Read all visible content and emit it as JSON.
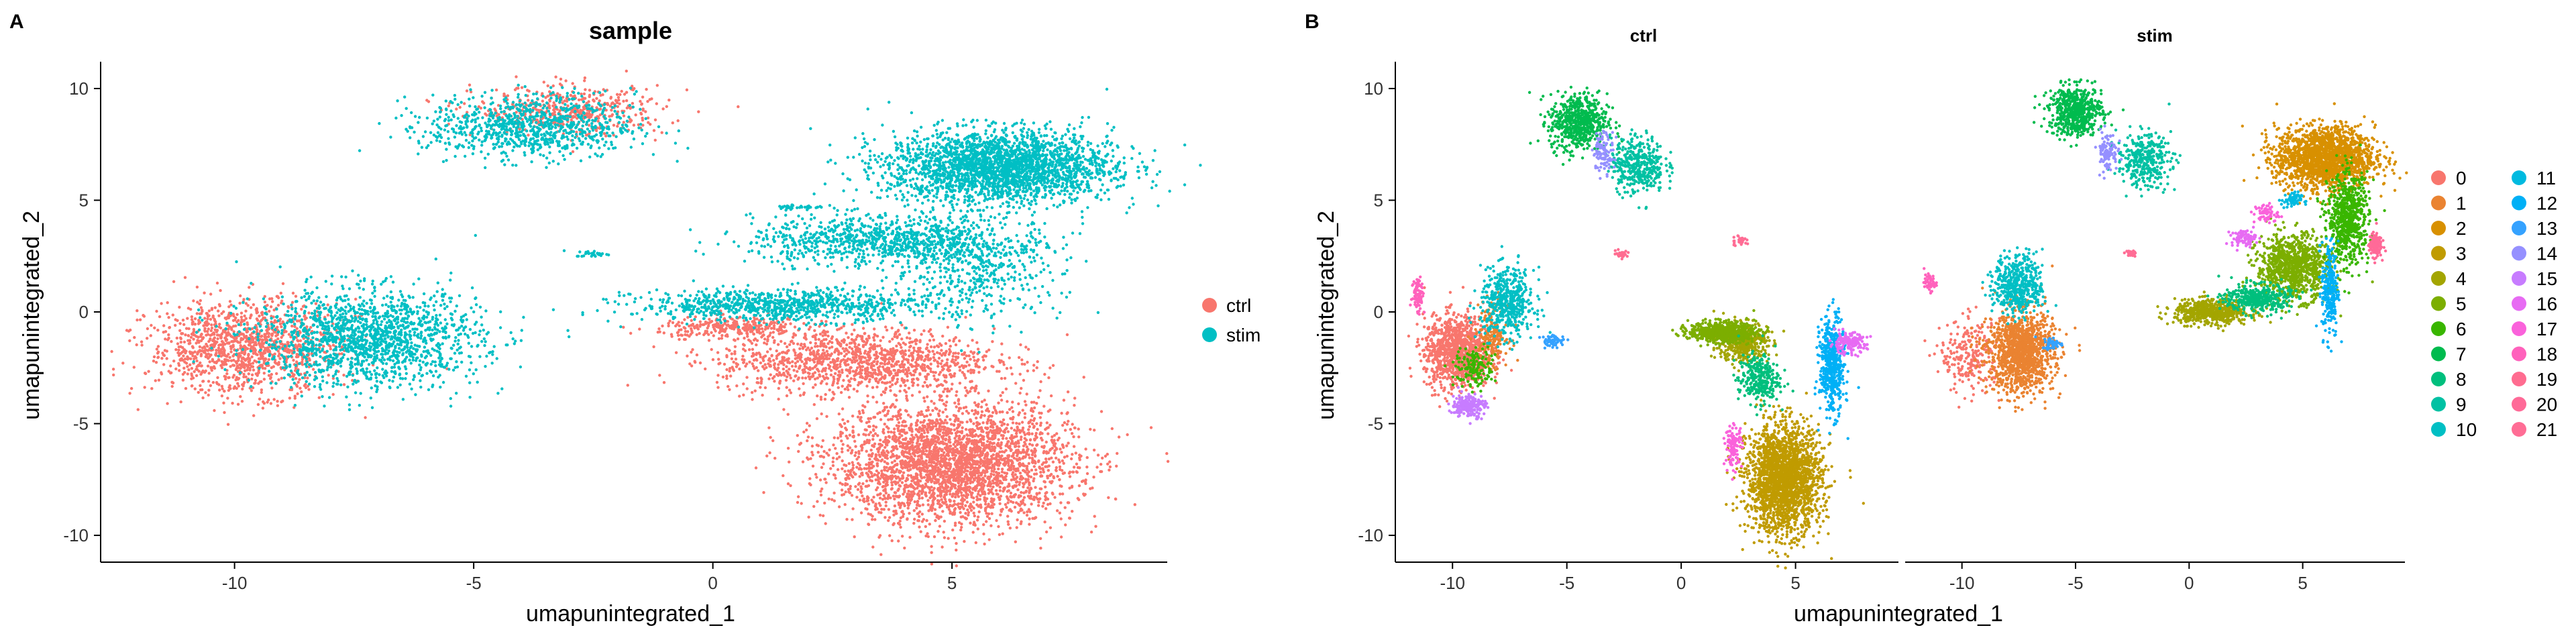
{
  "colors": {
    "ctrl": "#F8766D",
    "stim": "#00BFC4",
    "clusters": [
      "#F8766D",
      "#EA8331",
      "#D89000",
      "#C09B00",
      "#A3A500",
      "#7CAE00",
      "#39B600",
      "#00BB4E",
      "#00BF7D",
      "#00C1A3",
      "#00BFC4",
      "#00BAE0",
      "#00B0F6",
      "#35A2FF",
      "#9590FF",
      "#C77CFF",
      "#E76BF3",
      "#FA62DB",
      "#FF62BC",
      "#FF6C90",
      "#FF6A98",
      "#FF6D95"
    ]
  },
  "panels": {
    "a": {
      "tag": "A",
      "title": "sample"
    },
    "b": {
      "tag": "B",
      "facets": [
        "ctrl",
        "stim"
      ]
    }
  },
  "legend_sample": {
    "entries": [
      "ctrl",
      "stim"
    ]
  },
  "legend_clusters": {
    "entries": [
      "0",
      "1",
      "2",
      "3",
      "4",
      "5",
      "6",
      "7",
      "8",
      "9",
      "10",
      "11",
      "12",
      "13",
      "14",
      "15",
      "16",
      "17",
      "18",
      "19",
      "20",
      "21"
    ]
  },
  "chart_data": [
    {
      "type": "scatter",
      "title": "sample",
      "xlabel": "umapunintegrated_1",
      "ylabel": "umapunintegrated_2",
      "xlim": [
        -12.8,
        9.5
      ],
      "ylim": [
        -11.2,
        11.2
      ],
      "xticks": [
        -10,
        -5,
        0,
        5
      ],
      "yticks": [
        -10,
        -5,
        0,
        5,
        10
      ],
      "legend": "right",
      "grid": false,
      "series": [
        {
          "name": "ctrl",
          "color": "#F8766D",
          "regions": [
            {
              "cx": 5.0,
              "cy": -6.8,
              "rx": 2.8,
              "ry": 3.0,
              "n": 3200
            },
            {
              "cx": 3.0,
              "cy": -2.2,
              "rx": 3.2,
              "ry": 1.6,
              "n": 1300
            },
            {
              "cx": 0.5,
              "cy": -0.7,
              "rx": 1.8,
              "ry": 0.5,
              "n": 300
            },
            {
              "cx": -9.8,
              "cy": -1.6,
              "rx": 2.2,
              "ry": 2.3,
              "n": 1300
            },
            {
              "cx": -3.0,
              "cy": 9.0,
              "rx": 2.2,
              "ry": 1.2,
              "n": 500
            }
          ]
        },
        {
          "name": "stim",
          "color": "#00BFC4",
          "regions": [
            {
              "cx": 6.0,
              "cy": 6.5,
              "rx": 2.6,
              "ry": 1.8,
              "n": 2600
            },
            {
              "cx": 3.5,
              "cy": 3.2,
              "rx": 3.0,
              "ry": 1.2,
              "n": 900
            },
            {
              "cx": 1.5,
              "cy": 0.3,
              "rx": 3.4,
              "ry": 0.8,
              "n": 900
            },
            {
              "cx": 5.5,
              "cy": 2.0,
              "rx": 2.0,
              "ry": 2.5,
              "n": 500
            },
            {
              "cx": -7.2,
              "cy": -1.2,
              "rx": 2.6,
              "ry": 2.4,
              "n": 1600
            },
            {
              "cx": -3.8,
              "cy": 8.3,
              "rx": 2.4,
              "ry": 1.6,
              "n": 900
            },
            {
              "cx": -2.5,
              "cy": 2.6,
              "rx": 0.4,
              "ry": 0.15,
              "n": 30
            },
            {
              "cx": 1.8,
              "cy": 4.7,
              "rx": 0.6,
              "ry": 0.15,
              "n": 40
            }
          ]
        }
      ]
    },
    {
      "type": "scatter",
      "facet": "ctrl",
      "xlabel": "umapunintegrated_1",
      "ylabel": "umapunintegrated_2",
      "xlim": [
        -12.5,
        9.5
      ],
      "ylim": [
        -11.2,
        11.2
      ],
      "xticks": [
        -10,
        -5,
        0,
        5
      ],
      "yticks": [
        -10,
        -5,
        0,
        5,
        10
      ],
      "clusters": [
        {
          "id": 0,
          "cx": -9.8,
          "cy": -1.8,
          "rx": 1.6,
          "ry": 1.8,
          "n": 1100
        },
        {
          "id": 1,
          "cx": -8.3,
          "cy": -1.0,
          "rx": 0.8,
          "ry": 1.5,
          "n": 200
        },
        {
          "id": 3,
          "cx": 4.5,
          "cy": -7.5,
          "rx": 1.8,
          "ry": 2.6,
          "n": 2200
        },
        {
          "id": 4,
          "cx": 2.7,
          "cy": -1.4,
          "rx": 1.2,
          "ry": 1.0,
          "n": 400
        },
        {
          "id": 5,
          "cx": 1.8,
          "cy": -0.9,
          "rx": 1.6,
          "ry": 0.5,
          "n": 700
        },
        {
          "id": 6,
          "cx": -9.0,
          "cy": -2.5,
          "rx": 1.0,
          "ry": 1.0,
          "n": 150
        },
        {
          "id": 7,
          "cx": -4.5,
          "cy": 8.5,
          "rx": 1.4,
          "ry": 1.4,
          "n": 600
        },
        {
          "id": 8,
          "cx": 3.4,
          "cy": -3.0,
          "rx": 1.0,
          "ry": 1.2,
          "n": 300
        },
        {
          "id": 9,
          "cx": -1.9,
          "cy": 6.6,
          "rx": 1.3,
          "ry": 1.4,
          "n": 400
        },
        {
          "id": 10,
          "cx": -7.6,
          "cy": 0.4,
          "rx": 1.3,
          "ry": 1.7,
          "n": 500
        },
        {
          "id": 12,
          "cx": 6.6,
          "cy": -2.4,
          "rx": 0.6,
          "ry": 2.4,
          "n": 500
        },
        {
          "id": 13,
          "cx": -5.6,
          "cy": -1.3,
          "rx": 0.6,
          "ry": 0.3,
          "n": 60
        },
        {
          "id": 14,
          "cx": -3.4,
          "cy": 7.2,
          "rx": 0.5,
          "ry": 1.0,
          "n": 100
        },
        {
          "id": 15,
          "cx": -9.3,
          "cy": -4.2,
          "rx": 0.8,
          "ry": 0.6,
          "n": 200
        },
        {
          "id": 16,
          "cx": 7.3,
          "cy": -1.4,
          "rx": 0.9,
          "ry": 0.5,
          "n": 150
        },
        {
          "id": 17,
          "cx": 2.3,
          "cy": -6.0,
          "rx": 0.4,
          "ry": 1.0,
          "n": 120
        },
        {
          "id": 18,
          "cx": -11.5,
          "cy": 0.8,
          "rx": 0.3,
          "ry": 1.0,
          "n": 80
        },
        {
          "id": 19,
          "cx": -2.6,
          "cy": 2.6,
          "rx": 0.3,
          "ry": 0.15,
          "n": 30
        },
        {
          "id": 21,
          "cx": 2.6,
          "cy": 3.2,
          "rx": 0.4,
          "ry": 0.3,
          "n": 30
        }
      ]
    },
    {
      "type": "scatter",
      "facet": "stim",
      "xlabel": "umapunintegrated_1",
      "ylabel": "umapunintegrated_2",
      "xlim": [
        -12.5,
        9.5
      ],
      "ylim": [
        -11.2,
        11.2
      ],
      "xticks": [
        -10,
        -5,
        0,
        5
      ],
      "yticks": [
        -10,
        -5,
        0,
        5,
        10
      ],
      "clusters": [
        {
          "id": 0,
          "cx": -9.6,
          "cy": -2.0,
          "rx": 1.5,
          "ry": 1.8,
          "n": 250
        },
        {
          "id": 1,
          "cx": -7.4,
          "cy": -1.8,
          "rx": 1.6,
          "ry": 2.0,
          "n": 1300
        },
        {
          "id": 2,
          "cx": 6.0,
          "cy": 6.9,
          "rx": 2.4,
          "ry": 1.5,
          "n": 1800
        },
        {
          "id": 4,
          "cx": 1.0,
          "cy": 0.0,
          "rx": 1.8,
          "ry": 0.6,
          "n": 600
        },
        {
          "id": 5,
          "cx": 4.6,
          "cy": 2.0,
          "rx": 1.8,
          "ry": 1.6,
          "n": 1000
        },
        {
          "id": 6,
          "cx": 7.0,
          "cy": 4.2,
          "rx": 1.0,
          "ry": 2.2,
          "n": 700
        },
        {
          "id": 7,
          "cx": -5.0,
          "cy": 9.0,
          "rx": 1.3,
          "ry": 1.2,
          "n": 600
        },
        {
          "id": 8,
          "cx": 3.0,
          "cy": 0.6,
          "rx": 1.6,
          "ry": 0.7,
          "n": 400
        },
        {
          "id": 9,
          "cx": -2.0,
          "cy": 6.8,
          "rx": 1.3,
          "ry": 1.3,
          "n": 350
        },
        {
          "id": 10,
          "cx": -7.5,
          "cy": 1.2,
          "rx": 1.2,
          "ry": 1.5,
          "n": 500
        },
        {
          "id": 11,
          "cx": 4.5,
          "cy": 5.0,
          "rx": 0.5,
          "ry": 0.4,
          "n": 60
        },
        {
          "id": 12,
          "cx": 6.2,
          "cy": 1.0,
          "rx": 0.4,
          "ry": 2.4,
          "n": 250
        },
        {
          "id": 13,
          "cx": -6.0,
          "cy": -1.4,
          "rx": 0.5,
          "ry": 0.3,
          "n": 50
        },
        {
          "id": 14,
          "cx": -3.6,
          "cy": 7.2,
          "rx": 0.5,
          "ry": 1.0,
          "n": 100
        },
        {
          "id": 16,
          "cx": 2.4,
          "cy": 3.3,
          "rx": 0.6,
          "ry": 0.4,
          "n": 80
        },
        {
          "id": 17,
          "cx": 3.4,
          "cy": 4.4,
          "rx": 0.6,
          "ry": 0.5,
          "n": 60
        },
        {
          "id": 18,
          "cx": -11.4,
          "cy": 1.3,
          "rx": 0.3,
          "ry": 0.4,
          "n": 50
        },
        {
          "id": 20,
          "cx": 8.2,
          "cy": 3.0,
          "rx": 0.3,
          "ry": 0.6,
          "n": 150
        },
        {
          "id": 21,
          "cx": -2.6,
          "cy": 2.6,
          "rx": 0.3,
          "ry": 0.15,
          "n": 30
        }
      ]
    }
  ]
}
